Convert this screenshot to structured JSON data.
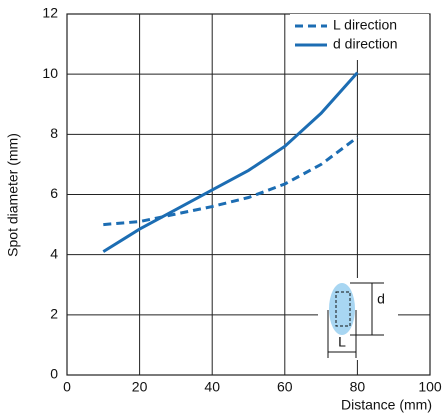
{
  "chart_data": {
    "type": "line",
    "x_label": "Distance (mm)",
    "y_label": "Spot diameter (mm)",
    "x": [
      10,
      20,
      30,
      40,
      50,
      60,
      70,
      80
    ],
    "series": [
      {
        "name": "L direction",
        "color": "#1c6db3",
        "dashed": true,
        "values": [
          5.0,
          5.1,
          5.35,
          5.6,
          5.9,
          6.35,
          7.0,
          7.9
        ]
      },
      {
        "name": "d direction",
        "color": "#1c6db3",
        "dashed": false,
        "values": [
          4.1,
          4.85,
          5.5,
          6.15,
          6.8,
          7.6,
          8.7,
          10.05
        ]
      }
    ],
    "xlim": [
      0,
      100
    ],
    "xticks": [
      0,
      20,
      40,
      60,
      80,
      100
    ],
    "ylim": [
      0,
      12
    ],
    "yticks": [
      0,
      2,
      4,
      6,
      8,
      10,
      12
    ],
    "grid": true,
    "legend": "upper right",
    "annotations": [
      "d",
      "L"
    ]
  }
}
